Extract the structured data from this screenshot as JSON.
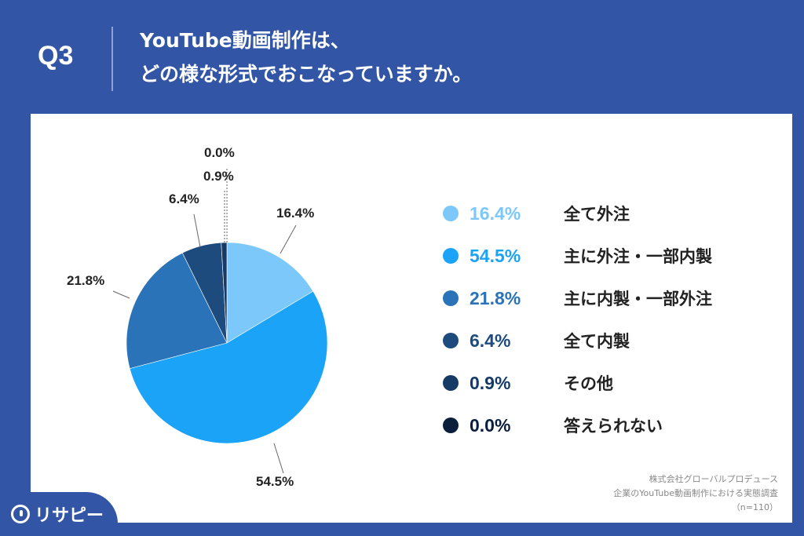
{
  "header": {
    "question": "Q3",
    "title_line1": "YouTube動画制作は、",
    "title_line2": "どの様な形式でおこなっていますか。"
  },
  "chart_data": {
    "type": "pie",
    "slices": [
      {
        "label": "全て外注",
        "value": 16.4,
        "pct_text": "16.4%",
        "color": "#7cc8fb"
      },
      {
        "label": "主に外注・一部内製",
        "value": 54.5,
        "pct_text": "54.5%",
        "color": "#1aa3f7"
      },
      {
        "label": "主に内製・一部外注",
        "value": 21.8,
        "pct_text": "21.8%",
        "color": "#2b73b9"
      },
      {
        "label": "全て内製",
        "value": 6.4,
        "pct_text": "6.4%",
        "color": "#1d4b7d"
      },
      {
        "label": "その他",
        "value": 0.9,
        "pct_text": "0.9%",
        "color": "#153a66"
      },
      {
        "label": "答えられない",
        "value": 0.0,
        "pct_text": "0.0%",
        "color": "#0b1f3d"
      }
    ]
  },
  "source": {
    "line1": "株式会社グローバルプロデュース",
    "line2": "企業のYouTube動画制作における実態調査",
    "line3": "（n=110）"
  },
  "logo": {
    "text": "リサピー"
  }
}
